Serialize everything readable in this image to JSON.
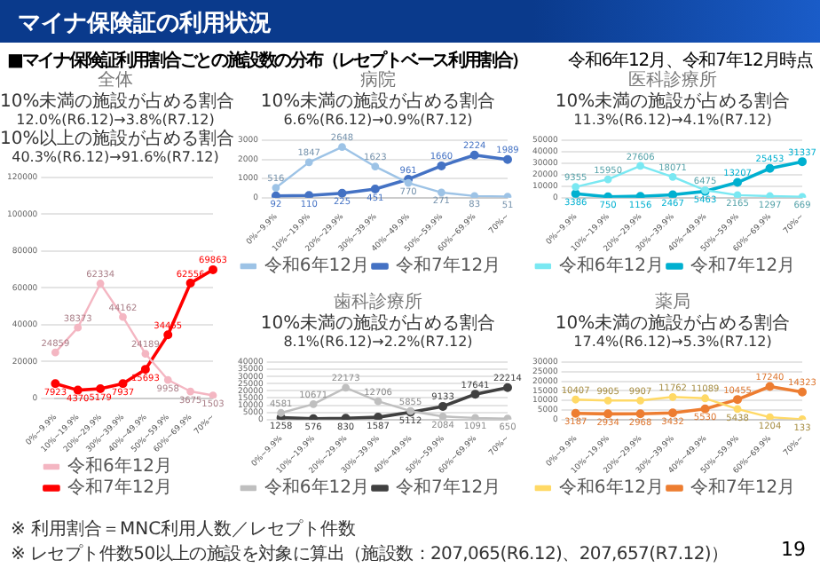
{
  "chart_data": [
    {
      "type": "other",
      "title": "マイナ保険証の利用状況",
      "subtitle": "■マイナ保険証利用割合ごとの施設数の分布（レセプトベース利用割合）",
      "annotations": [
        "令和6年12月、令和7年12月時点",
        "※ 利用割合＝MNC利用人数／レセプト件数",
        "※ レセプト件数50以上の施設を対象に算出（施設数：207,065(R6.12)、207,657(R7.12)）",
        "19"
      ]
    },
    {
      "type": "line",
      "title": "全体",
      "categories": [
        "0%~9.9%",
        "10%~19.9%",
        "20%~29.9%",
        "30%~39.9%",
        "40%~49.9%",
        "50%~59.9%",
        "60%~69.9%",
        "70%~"
      ],
      "series": [
        {
          "name": "令和6年12月",
          "color": "#f4b6c2",
          "values": [
            24859,
            38373,
            62334,
            44162,
            24189,
            9958,
            3675,
            1503
          ]
        },
        {
          "name": "令和7年12月",
          "color": "#ff0000",
          "values": [
            7923,
            4370,
            5179,
            7937,
            15693,
            34455,
            62556,
            69863
          ]
        }
      ],
      "ylim": [
        0,
        120000
      ],
      "yticks": [
        0,
        20000,
        40000,
        60000,
        80000,
        100000,
        120000
      ],
      "grid": "y",
      "legend": "bottom",
      "marker": "circle",
      "line_style": "solid",
      "data_labels": true,
      "annotations": [
        "10%未満の施設が占める割合\n12.0%(R6.12)→3.8%(R7.12)",
        "10%以上の施設が占める割合\n40.3%(R6.12)→91.6%(R7.12)"
      ]
    },
    {
      "type": "line",
      "title": "病院",
      "categories": [
        "0%~9.9%",
        "10%~19.9%",
        "20%~29.9%",
        "30%~39.9%",
        "40%~49.9%",
        "50%~59.9%",
        "60%~69.9%",
        "70%~"
      ],
      "series": [
        {
          "name": "令和6年12月",
          "color": "#9dc3e6",
          "values": [
            516,
            1847,
            2648,
            1623,
            770,
            271,
            83,
            51
          ]
        },
        {
          "name": "令和7年12月",
          "color": "#4472c4",
          "values": [
            92,
            110,
            225,
            451,
            961,
            1660,
            2224,
            1989
          ]
        }
      ],
      "ylim": [
        0,
        3000
      ],
      "yticks": [
        0,
        1000,
        2000,
        3000
      ],
      "grid": "y",
      "legend": "bottom",
      "marker": "circle",
      "line_style": "solid",
      "data_labels": true,
      "annotations": [
        "10%未満の施設が占める割合\n6.6%(R6.12)→0.9%(R7.12)"
      ]
    },
    {
      "type": "line",
      "title": "医科診療所",
      "categories": [
        "0%~9.9%",
        "10%~19.9%",
        "20%~29.9%",
        "30%~39.9%",
        "40%~49.9%",
        "50%~59.9%",
        "60%~69.9%",
        "70%~"
      ],
      "series": [
        {
          "name": "令和6年12月",
          "color": "#7ae8f2",
          "values": [
            9355,
            15950,
            27606,
            18071,
            6475,
            2165,
            1297,
            669
          ]
        },
        {
          "name": "令和7年12月",
          "color": "#00b0d0",
          "values": [
            3386,
            750,
            1156,
            2467,
            5463,
            13207,
            25453,
            31337
          ]
        }
      ],
      "ylim": [
        0,
        50000
      ],
      "yticks": [
        0,
        10000,
        20000,
        30000,
        40000,
        50000
      ],
      "grid": "y",
      "legend": "bottom",
      "marker": "circle",
      "line_style": "solid",
      "data_labels": true,
      "annotations": [
        "10%未満の施設が占める割合\n11.3%(R6.12)→4.1%(R7.12)"
      ]
    },
    {
      "type": "line",
      "title": "歯科診療所",
      "categories": [
        "0%~9.9%",
        "10%~19.9%",
        "20%~29.9%",
        "30%~39.9%",
        "40%~49.9%",
        "50%~59.9%",
        "60%~69.9%",
        "70%~"
      ],
      "series": [
        {
          "name": "令和6年12月",
          "color": "#bfbfbf",
          "values": [
            4581,
            10671,
            22173,
            12706,
            5855,
            2084,
            1091,
            650
          ]
        },
        {
          "name": "令和7年12月",
          "color": "#404040",
          "values": [
            1258,
            576,
            830,
            1587,
            5112,
            9133,
            17641,
            22214
          ]
        }
      ],
      "ylim": [
        0,
        40000
      ],
      "yticks": [
        0,
        5000,
        10000,
        15000,
        20000,
        25000,
        30000,
        35000,
        40000
      ],
      "grid": "y",
      "legend": "bottom",
      "marker": "circle",
      "line_style": "solid",
      "data_labels": true,
      "annotations": [
        "10%未満の施設が占める割合\n8.1%(R6.12)→2.2%(R7.12)"
      ]
    },
    {
      "type": "line",
      "title": "薬局",
      "categories": [
        "0%~9.9%",
        "10%~19.9%",
        "20%~29.9%",
        "30%~39.9%",
        "40%~49.9%",
        "50%~59.9%",
        "60%~69.9%",
        "70%~"
      ],
      "series": [
        {
          "name": "令和6年12月",
          "color": "#ffd966",
          "values": [
            10407,
            9905,
            9907,
            11762,
            11089,
            5438,
            1204,
            133
          ]
        },
        {
          "name": "令和7年12月",
          "color": "#ed7d31",
          "values": [
            3187,
            2934,
            2968,
            3432,
            5530,
            10455,
            17240,
            14323
          ]
        }
      ],
      "ylim": [
        0,
        30000
      ],
      "yticks": [
        0,
        5000,
        10000,
        15000,
        20000,
        25000,
        30000
      ],
      "grid": "y",
      "legend": "bottom",
      "marker": "circle",
      "line_style": "solid",
      "data_labels": true,
      "annotations": [
        "10%未満の施設が占める割合\n17.4%(R6.12)→5.3%(R7.12)"
      ]
    }
  ]
}
